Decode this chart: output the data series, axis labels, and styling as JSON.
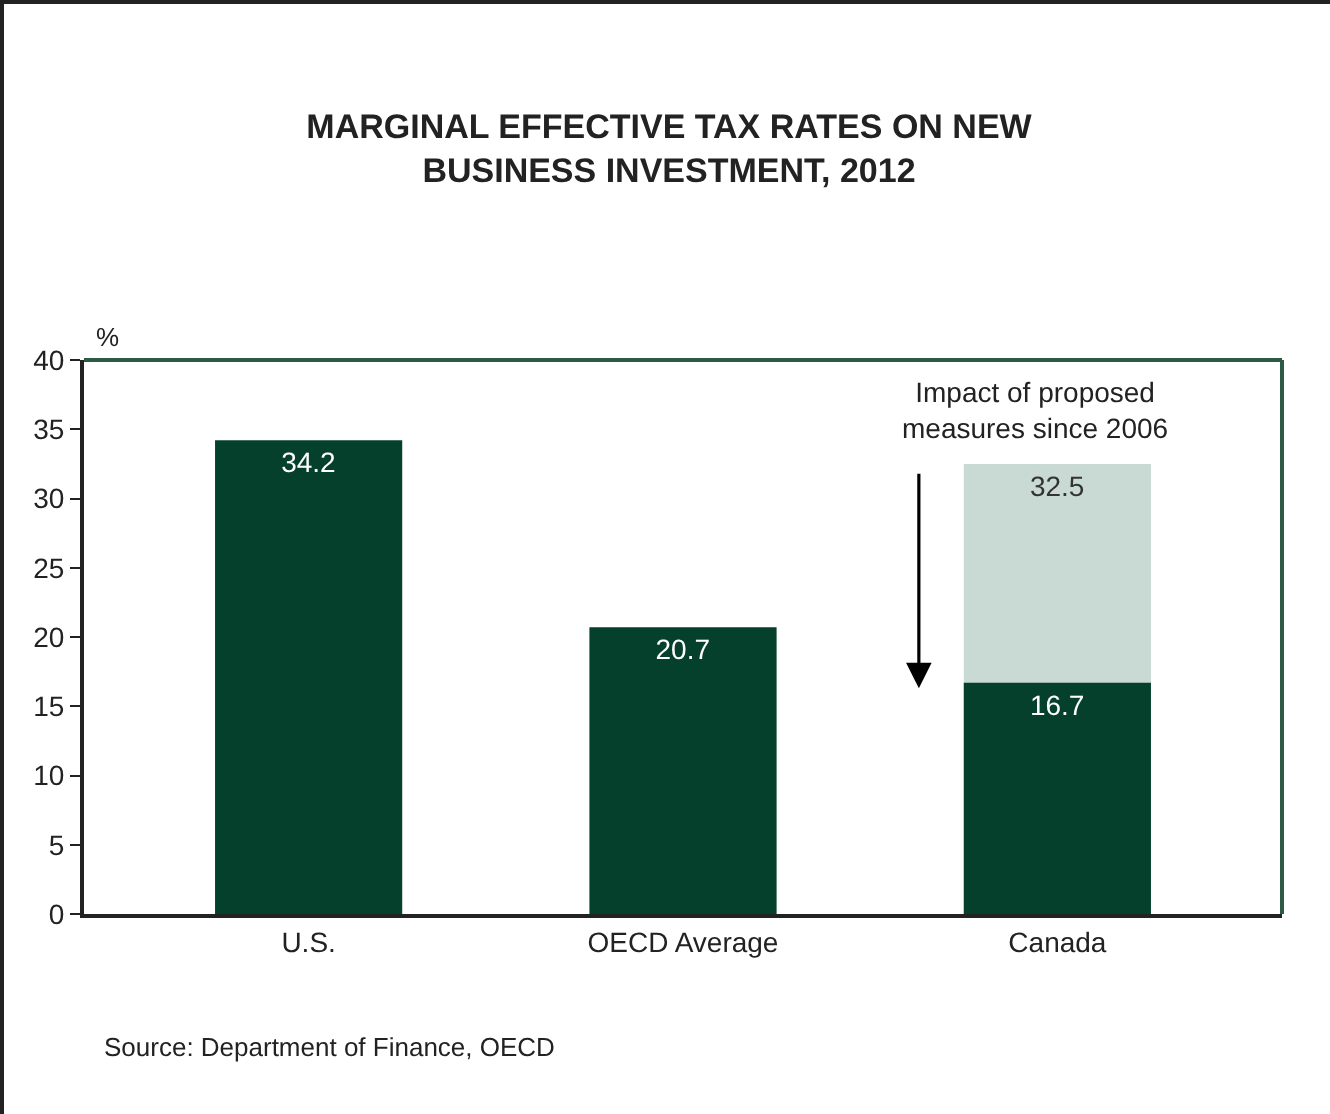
{
  "chart_data": {
    "type": "bar",
    "title": "MARGINAL EFFECTIVE TAX RATES ON NEW BUSINESS INVESTMENT, 2012",
    "ylabel": "%",
    "categories": [
      "U.S.",
      "OECD Average",
      "Canada"
    ],
    "series": [
      {
        "color": "#c8dad3",
        "values": [
          null,
          null,
          32.5
        ]
      },
      {
        "color": "#05402c",
        "values": [
          34.2,
          20.7,
          16.7
        ]
      }
    ],
    "data_labels": true,
    "ylim": [
      0,
      40
    ],
    "yticks": [
      0,
      5,
      10,
      15,
      20,
      25,
      30,
      35,
      40
    ],
    "grid": false,
    "annotations": [
      {
        "text": "Impact of proposed measures since 2006",
        "x": "Canada",
        "y": 32.5
      },
      "Source: Department of Finance, OECD"
    ]
  }
}
